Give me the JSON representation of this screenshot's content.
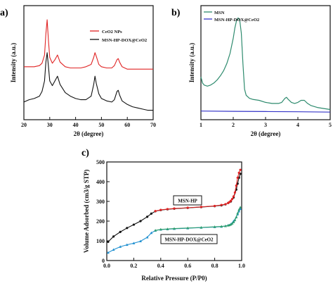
{
  "chart_data": [
    {
      "panel_label": "a)",
      "type": "line",
      "xlabel": "2θ (degree)",
      "ylabel": "Intensity (a.u.)",
      "xlim": [
        20,
        70
      ],
      "xticks": [
        "20",
        "30",
        "40",
        "50",
        "60",
        "70"
      ],
      "y_tick_labels": "none",
      "legend_position": "top-right",
      "series": [
        {
          "name": "CeO2 NPs",
          "color": "#e02424",
          "x": [
            20,
            22,
            24,
            26,
            27,
            28,
            28.5,
            29,
            29.5,
            30,
            31,
            32,
            33,
            34,
            36,
            38,
            40,
            42,
            44,
            46,
            47,
            47.5,
            48,
            49,
            50,
            52,
            54,
            55,
            56,
            56.5,
            57,
            58,
            60,
            62,
            64,
            66,
            68,
            70
          ],
          "y": [
            0.6,
            0.6,
            0.6,
            0.61,
            0.63,
            0.7,
            0.88,
            1.0,
            0.82,
            0.68,
            0.63,
            0.66,
            0.7,
            0.64,
            0.6,
            0.59,
            0.59,
            0.59,
            0.6,
            0.62,
            0.68,
            0.72,
            0.69,
            0.62,
            0.6,
            0.59,
            0.59,
            0.61,
            0.66,
            0.67,
            0.64,
            0.6,
            0.58,
            0.58,
            0.58,
            0.58,
            0.58,
            0.58
          ]
        },
        {
          "name": "MSN-HP-DOX@CeO2",
          "color": "#111111",
          "x": [
            20,
            22,
            24,
            26,
            27,
            28,
            28.5,
            29,
            29.5,
            30,
            31,
            32,
            33,
            34,
            36,
            38,
            40,
            42,
            44,
            46,
            47,
            47.5,
            48,
            49,
            50,
            52,
            54,
            55,
            56,
            56.5,
            57,
            58,
            60,
            62,
            64,
            66,
            68,
            70
          ],
          "y": [
            0.3,
            0.32,
            0.33,
            0.35,
            0.39,
            0.48,
            0.64,
            0.72,
            0.6,
            0.48,
            0.44,
            0.48,
            0.52,
            0.45,
            0.38,
            0.35,
            0.33,
            0.32,
            0.32,
            0.35,
            0.45,
            0.52,
            0.46,
            0.37,
            0.33,
            0.31,
            0.3,
            0.32,
            0.39,
            0.4,
            0.36,
            0.31,
            0.28,
            0.26,
            0.25,
            0.24,
            0.23,
            0.23
          ]
        }
      ]
    },
    {
      "panel_label": "b)",
      "type": "line",
      "xlabel": "2θ (degree)",
      "ylabel": "Intensity (a.u.)",
      "xlim": [
        1,
        5
      ],
      "xticks": [
        "1",
        "2",
        "3",
        "4",
        "5"
      ],
      "y_tick_labels": "none",
      "legend_position": "top-left",
      "series": [
        {
          "name": "MSN",
          "color": "#2e8b6e",
          "x": [
            1,
            1.05,
            1.1,
            1.2,
            1.3,
            1.4,
            1.5,
            1.6,
            1.7,
            1.8,
            1.9,
            2.0,
            2.05,
            2.1,
            2.15,
            2.2,
            2.25,
            2.3,
            2.35,
            2.4,
            2.5,
            2.6,
            2.8,
            3.0,
            3.2,
            3.4,
            3.5,
            3.6,
            3.65,
            3.7,
            3.8,
            3.9,
            4.0,
            4.1,
            4.2,
            4.3,
            4.4,
            4.6,
            4.8,
            5.0
          ],
          "y": [
            0.42,
            0.36,
            0.34,
            0.33,
            0.34,
            0.36,
            0.39,
            0.43,
            0.48,
            0.55,
            0.65,
            0.8,
            0.9,
            0.97,
            1.0,
            0.98,
            0.85,
            0.55,
            0.3,
            0.24,
            0.21,
            0.2,
            0.19,
            0.17,
            0.16,
            0.16,
            0.17,
            0.21,
            0.22,
            0.2,
            0.17,
            0.16,
            0.17,
            0.19,
            0.19,
            0.16,
            0.14,
            0.12,
            0.11,
            0.1
          ]
        },
        {
          "name": "MSN-HP-DOX@CeO2",
          "color": "#3636c8",
          "x": [
            1,
            2,
            3,
            4,
            5
          ],
          "y": [
            0.085,
            0.082,
            0.08,
            0.078,
            0.075
          ]
        }
      ]
    },
    {
      "panel_label": "c)",
      "type": "line",
      "xlabel": "Relative Pressure (P/P0)",
      "ylabel": "Volume Adsorbed (cm3/g STP)",
      "xlim": [
        0.0,
        1.0
      ],
      "ylim": [
        0,
        500
      ],
      "xticks": [
        "0.0",
        "0.2",
        "0.4",
        "0.6",
        "0.8",
        "1.0"
      ],
      "yticks": [
        "0",
        "100",
        "200",
        "300",
        "400",
        "500"
      ],
      "series": [
        {
          "name": "MSN-HP adsorption",
          "color": "#111111",
          "x": [
            0.01,
            0.05,
            0.1,
            0.15,
            0.2,
            0.25,
            0.3,
            0.33,
            0.36,
            0.4,
            0.45,
            0.5,
            0.6,
            0.7,
            0.8,
            0.85,
            0.88,
            0.9,
            0.92,
            0.94,
            0.96,
            0.97,
            0.98,
            0.99
          ],
          "y": [
            95,
            122,
            145,
            165,
            182,
            200,
            222,
            238,
            250,
            256,
            260,
            263,
            267,
            271,
            276,
            280,
            285,
            292,
            300,
            320,
            360,
            390,
            420,
            440
          ]
        },
        {
          "name": "MSN-HP desorption",
          "color": "#e02424",
          "x": [
            0.99,
            0.98,
            0.97,
            0.96,
            0.95,
            0.94,
            0.93,
            0.92,
            0.91,
            0.9,
            0.88,
            0.85,
            0.8,
            0.7,
            0.6,
            0.5,
            0.45,
            0.4,
            0.36
          ],
          "y": [
            460,
            445,
            420,
            380,
            345,
            325,
            312,
            303,
            297,
            292,
            286,
            282,
            277,
            272,
            268,
            264,
            261,
            257,
            251
          ]
        },
        {
          "name": "MSN-HP-DOX@CeO2 adsorption",
          "color": "#1e8fd0",
          "x": [
            0.01,
            0.05,
            0.1,
            0.15,
            0.2,
            0.25,
            0.3,
            0.33,
            0.36,
            0.4,
            0.45,
            0.5,
            0.6,
            0.7,
            0.8,
            0.85,
            0.88,
            0.9,
            0.92,
            0.94,
            0.96,
            0.97,
            0.98,
            0.99
          ],
          "y": [
            40,
            55,
            70,
            80,
            88,
            98,
            118,
            140,
            152,
            157,
            159,
            161,
            164,
            167,
            170,
            172,
            175,
            179,
            185,
            200,
            220,
            235,
            250,
            262
          ]
        },
        {
          "name": "MSN-HP-DOX@CeO2 desorption",
          "color": "#2e9e6e",
          "x": [
            0.99,
            0.98,
            0.97,
            0.96,
            0.95,
            0.94,
            0.93,
            0.92,
            0.91,
            0.9,
            0.88,
            0.85,
            0.8,
            0.7,
            0.6,
            0.5,
            0.45,
            0.4,
            0.36
          ],
          "y": [
            270,
            258,
            240,
            220,
            205,
            195,
            188,
            183,
            180,
            178,
            175,
            173,
            171,
            168,
            165,
            162,
            160,
            158,
            153
          ]
        }
      ],
      "annotations": [
        {
          "text": "MSN-HP",
          "at": [
            0.6,
            300
          ]
        },
        {
          "text": "MSN-HP-DOX@CeO2",
          "at": [
            0.6,
            120
          ]
        }
      ]
    }
  ]
}
